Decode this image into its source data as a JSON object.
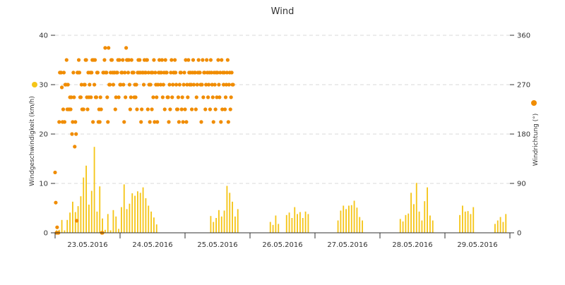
{
  "chart_data": {
    "type": "bar+scatter",
    "title": "Wind",
    "ylabel_left": "Windgeschwindigkeit (km/h)",
    "ylabel_right": "Windrichtung (°)",
    "ylim_left": [
      0,
      40
    ],
    "ylim_right": [
      0,
      360
    ],
    "yticks_left": [
      "0",
      "10",
      "20",
      "30",
      "40"
    ],
    "yticks_right": [
      "0",
      "90",
      "180",
      "270",
      "360"
    ],
    "xlim_days": [
      0,
      7
    ],
    "xtick_labels": [
      "23.05.2016",
      "24.05.2016",
      "25.05.2016",
      "26.05.2016",
      "27.05.2016",
      "28.05.2016",
      "29.05.2016"
    ],
    "grid": true,
    "legend": "axis-markers",
    "colors": {
      "speed": "#f5c518",
      "direction": "#f08c00",
      "grid": "#d8d8d8",
      "axis": "#333333"
    },
    "series": [
      {
        "type": "bar",
        "axis": "left",
        "bin_hours": 1,
        "values": [
          0.5,
          0.6,
          2.6,
          0.5,
          2.6,
          4.1,
          6.3,
          4.2,
          5.4,
          7.4,
          11.2,
          13.6,
          5.7,
          8.5,
          17.4,
          4.3,
          9.4,
          2.9,
          0.6,
          3.8,
          0.5,
          4.6,
          3.3,
          0.8,
          5.2,
          9.8,
          4.8,
          5.9,
          8.0,
          7.5,
          8.4,
          8.1,
          9.2,
          7.0,
          5.5,
          4.3,
          3.1,
          1.7,
          0,
          0,
          0,
          0,
          0,
          0,
          0,
          0,
          0,
          0,
          0,
          0,
          0,
          0,
          0,
          0,
          0,
          0,
          0,
          3.4,
          2.2,
          3.0,
          4.6,
          3.3,
          4.5,
          9.5,
          8.1,
          6.3,
          3.3,
          4.8,
          0,
          0,
          0,
          0,
          0,
          0,
          0,
          0,
          0,
          0,
          0,
          2.2,
          1.6,
          3.5,
          1.8,
          0,
          0,
          3.6,
          4.1,
          3.0,
          5.2,
          3.8,
          4.2,
          3.0,
          4.3,
          3.8,
          0,
          0,
          0,
          0,
          0,
          0,
          0,
          0,
          0,
          0,
          2.5,
          4.5,
          5.5,
          4.8,
          5.5,
          5.6,
          6.5,
          5.1,
          3.2,
          2.5,
          0,
          0,
          0,
          0,
          0,
          0,
          0,
          0,
          0,
          0,
          0,
          0,
          0,
          2.8,
          2.3,
          3.6,
          3.9,
          8.1,
          5.8,
          10.1,
          4.3,
          2.5,
          6.4,
          9.2,
          3.5,
          2.5,
          0,
          0,
          0,
          0,
          0,
          0,
          0,
          0,
          0,
          3.6,
          5.5,
          4.3,
          4.4,
          3.8,
          5.2,
          0,
          0,
          0,
          0,
          0,
          0,
          0,
          1.8,
          2.5,
          3.2,
          2.2,
          3.8,
          0
        ]
      },
      {
        "type": "scatter",
        "axis": "right",
        "day_start": 0,
        "step_hours": 0.25,
        "note_only_values_shown": true,
        "values": [
          110,
          55,
          0,
          10,
          0,
          0,
          202,
          292,
          292,
          292,
          265,
          202,
          225,
          292,
          202,
          270,
          270,
          315,
          225,
          270,
          225,
          225,
          247,
          225,
          247,
          180,
          202,
          292,
          247,
          157,
          202,
          180,
          22,
          292,
          292,
          315,
          292,
          247,
          247,
          270,
          225,
          225,
          225,
          270,
          270,
          315,
          315,
          247,
          225,
          292,
          247,
          270,
          292,
          247,
          292,
          315,
          202,
          315,
          270,
          315,
          247,
          247,
          292,
          292,
          202,
          225,
          202,
          247,
          225,
          0,
          0,
          292,
          292,
          315,
          337,
          292,
          292,
          247,
          202,
          337,
          270,
          270,
          292,
          315,
          315,
          292,
          270,
          292,
          292,
          225,
          247,
          292,
          292,
          315,
          247,
          315,
          270,
          270,
          292,
          292,
          315,
          270,
          202,
          292,
          247,
          337,
          315,
          315,
          292,
          315,
          270,
          225,
          247,
          315,
          292,
          292,
          292,
          247,
          270,
          247,
          270,
          225,
          292,
          315,
          292,
          315,
          292,
          202,
          225,
          292,
          292,
          270,
          315,
          292,
          292,
          315,
          315,
          225,
          292,
          270,
          202,
          270,
          292,
          225,
          292,
          247,
          315,
          202,
          292,
          270,
          247,
          202,
          270,
          292,
          315,
          292,
          270,
          292,
          315,
          247,
          270,
          292,
          225,
          315,
          292,
          292,
          247,
          247,
          202,
          270,
          225,
          292,
          315,
          247,
          270,
          292,
          292,
          315,
          292,
          270,
          225,
          225,
          247,
          202,
          270,
          292,
          292,
          225,
          247,
          202,
          270,
          292,
          225,
          315,
          202,
          270,
          247,
          315,
          292,
          270,
          292,
          270,
          225,
          292,
          315,
          270,
          292,
          292,
          225,
          247,
          270,
          292,
          315,
          292,
          292,
          270,
          202,
          270,
          315,
          247,
          292,
          292,
          225,
          270,
          315,
          292,
          247,
          270,
          292,
          225,
          315,
          292,
          270,
          247,
          202,
          292,
          270,
          225,
          292,
          247,
          292,
          315,
          270,
          247,
          292,
          202,
          315,
          225,
          292,
          270,
          292,
          225,
          247,
          270,
          292,
          315,
          202,
          270,
          292,
          225,
          247,
          292,
          270,
          270
        ]
      }
    ]
  }
}
